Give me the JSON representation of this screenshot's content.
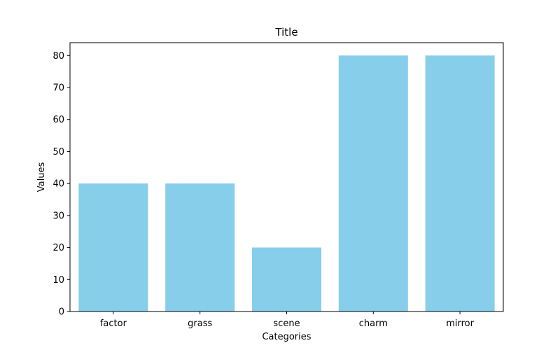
{
  "chart_data": {
    "type": "bar",
    "title": "Title",
    "xlabel": "Categories",
    "ylabel": "Values",
    "categories": [
      "factor",
      "grass",
      "scene",
      "charm",
      "mirror"
    ],
    "values": [
      40,
      40,
      20,
      80,
      80
    ],
    "ylim": [
      0,
      84
    ],
    "yticks": [
      0,
      10,
      20,
      30,
      40,
      50,
      60,
      70,
      80
    ],
    "grid": false,
    "bar_color": "#87CEEB"
  }
}
